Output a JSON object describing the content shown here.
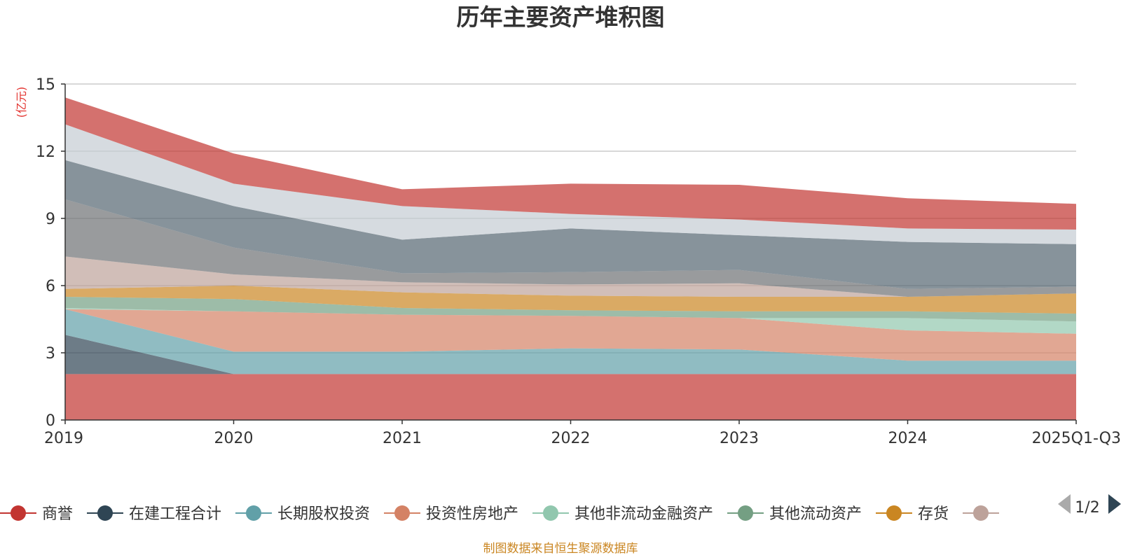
{
  "chart_data": {
    "type": "area",
    "stacked": true,
    "title": "历年主要资产堆积图",
    "ylabel": "(亿元)",
    "xlabel": "",
    "ylim": [
      0,
      15
    ],
    "yticks": [
      0,
      3,
      6,
      9,
      12,
      15
    ],
    "categories": [
      "2019",
      "2020",
      "2021",
      "2022",
      "2023",
      "2024",
      "2025Q1-Q3"
    ],
    "series": [
      {
        "name": "商誉",
        "color": "#c23531",
        "legend": true,
        "values": [
          2.05,
          2.05,
          2.05,
          2.05,
          2.05,
          2.05,
          2.05
        ]
      },
      {
        "name": "在建工程合计",
        "color": "#2f4554",
        "legend": true,
        "values": [
          1.75,
          0.0,
          0.0,
          0.0,
          0.0,
          0.0,
          0.0
        ]
      },
      {
        "name": "长期股权投资",
        "color": "#61a0a8",
        "legend": true,
        "values": [
          1.15,
          1.0,
          1.0,
          1.15,
          1.1,
          0.6,
          0.6
        ]
      },
      {
        "name": "投资性房地产",
        "color": "#d48265",
        "legend": true,
        "values": [
          0.0,
          1.8,
          1.65,
          1.45,
          1.4,
          1.35,
          1.2
        ]
      },
      {
        "name": "其他非流动金融资产",
        "color": "#91c7ae",
        "legend": true,
        "values": [
          0.05,
          0.0,
          0.0,
          0.0,
          0.0,
          0.55,
          0.55
        ]
      },
      {
        "name": "其他流动资产",
        "color": "#749f83",
        "legend": true,
        "values": [
          0.5,
          0.55,
          0.3,
          0.25,
          0.3,
          0.3,
          0.35
        ]
      },
      {
        "name": "存货",
        "color": "#ca8622",
        "legend": true,
        "values": [
          0.35,
          0.6,
          0.7,
          0.65,
          0.65,
          0.65,
          0.9
        ]
      },
      {
        "name": "",
        "color": "#bda29a",
        "legend": true,
        "values": [
          1.45,
          0.5,
          0.45,
          0.5,
          0.6,
          0.0,
          0.0
        ]
      },
      {
        "name": "",
        "color": "#6e7074",
        "legend": false,
        "values": [
          2.55,
          1.2,
          0.4,
          0.55,
          0.6,
          0.35,
          0.3
        ]
      },
      {
        "name": "",
        "color": "#546570",
        "legend": false,
        "values": [
          1.75,
          1.85,
          1.5,
          1.95,
          1.55,
          2.1,
          1.9
        ]
      },
      {
        "name": "",
        "color": "#c4ccd3",
        "legend": false,
        "values": [
          1.6,
          1.0,
          1.5,
          0.65,
          0.7,
          0.6,
          0.65
        ]
      },
      {
        "name": "",
        "color": "#c23531",
        "legend": false,
        "values": [
          1.2,
          1.35,
          0.75,
          1.35,
          1.55,
          1.35,
          1.15
        ]
      }
    ]
  },
  "legend_page": "1/2",
  "source_note": "制图数据来自恒生聚源数据库"
}
